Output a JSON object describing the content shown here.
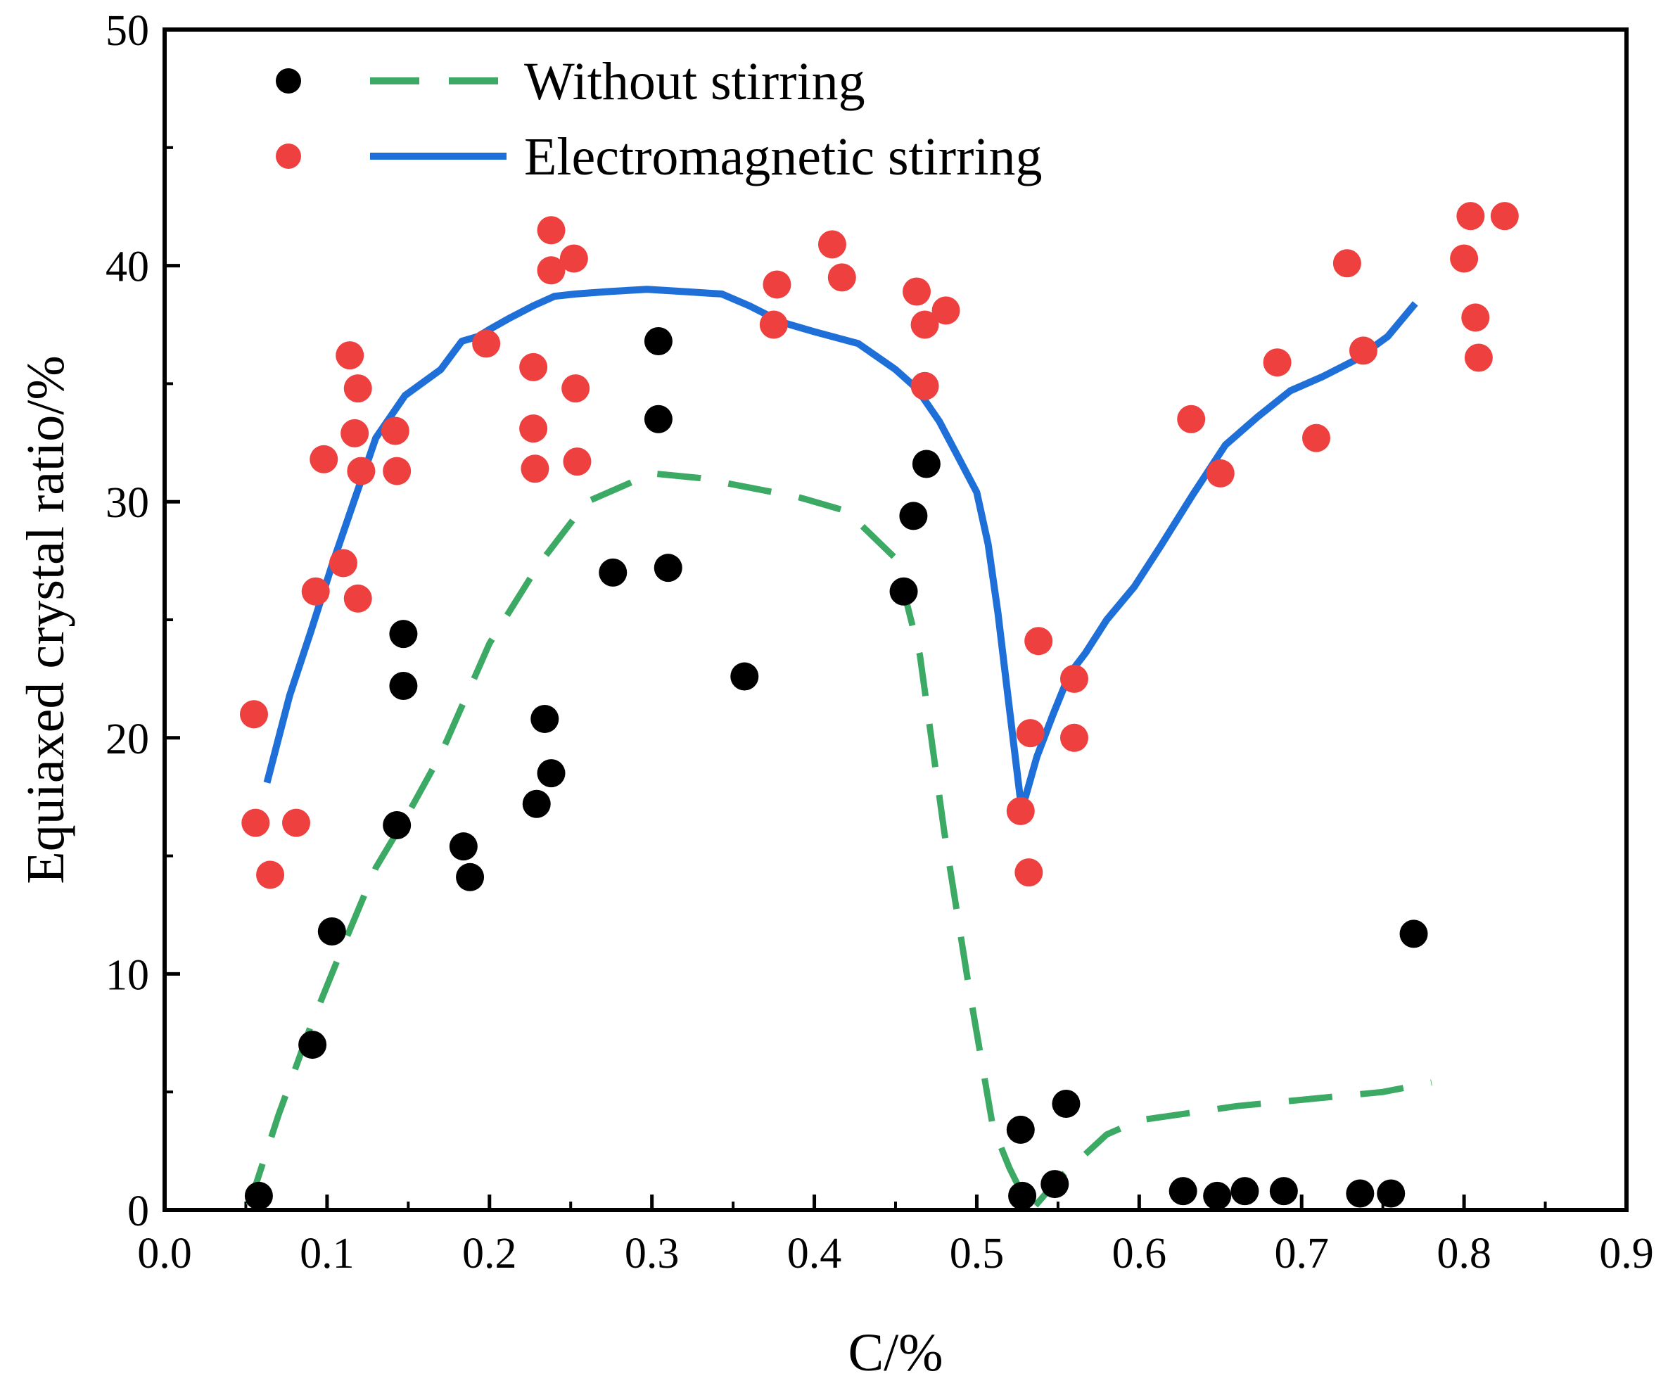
{
  "chart_data": {
    "type": "scatter",
    "title": "",
    "xlabel": "C/%",
    "ylabel": "Equiaxed crystal ratio/%",
    "xlim": [
      0.0,
      0.9
    ],
    "ylim": [
      0,
      50
    ],
    "x_ticks": [
      0.0,
      0.1,
      0.2,
      0.3,
      0.4,
      0.5,
      0.6,
      0.7,
      0.8,
      0.9
    ],
    "x_tick_labels": [
      "0.0",
      "0.1",
      "0.2",
      "0.3",
      "0.4",
      "0.5",
      "0.6",
      "0.7",
      "0.8",
      "0.9"
    ],
    "y_ticks": [
      0,
      10,
      20,
      30,
      40,
      50
    ],
    "y_tick_labels": [
      "0",
      "10",
      "20",
      "30",
      "40",
      "50"
    ],
    "grid": false,
    "legend_position": "top-left",
    "colors": {
      "without_points": "#000000",
      "without_line": "#3caa64",
      "with_points": "#ef4040",
      "with_line": "#1f6fd8",
      "axis": "#000000",
      "background": "#ffffff"
    },
    "series": [
      {
        "name": "Without stirring",
        "kind": "points",
        "marker": "circle",
        "color": "#000000",
        "x": [
          0.058,
          0.091,
          0.103,
          0.143,
          0.147,
          0.147,
          0.184,
          0.188,
          0.229,
          0.234,
          0.238,
          0.276,
          0.304,
          0.304,
          0.31,
          0.357,
          0.455,
          0.461,
          0.469,
          0.527,
          0.528,
          0.548,
          0.555,
          0.627,
          0.648,
          0.665,
          0.689,
          0.736,
          0.755,
          0.769
        ],
        "y": [
          0.6,
          7.0,
          11.8,
          16.3,
          24.4,
          22.2,
          15.4,
          14.1,
          17.2,
          20.8,
          18.5,
          27.0,
          36.8,
          33.5,
          27.2,
          22.6,
          26.2,
          29.4,
          31.6,
          3.4,
          0.6,
          1.1,
          4.5,
          0.8,
          0.6,
          0.8,
          0.8,
          0.7,
          0.7,
          11.7
        ]
      },
      {
        "name": "Without stirring",
        "kind": "line",
        "style": "dashed",
        "color": "#3caa64",
        "x": [
          0.052,
          0.07,
          0.09,
          0.11,
          0.13,
          0.15,
          0.17,
          0.2,
          0.23,
          0.26,
          0.3,
          0.33,
          0.36,
          0.39,
          0.42,
          0.45,
          0.465,
          0.48,
          0.495,
          0.51,
          0.52,
          0.53,
          0.535,
          0.55,
          0.58,
          0.6,
          0.63,
          0.66,
          0.69,
          0.72,
          0.75,
          0.78
        ],
        "y": [
          0.2,
          4.0,
          7.8,
          11.2,
          14.5,
          16.8,
          19.3,
          24.0,
          27.3,
          30.0,
          31.2,
          31.0,
          30.6,
          30.2,
          29.6,
          27.6,
          23.5,
          16.0,
          9.5,
          3.5,
          1.8,
          0.4,
          0.1,
          1.3,
          3.2,
          3.8,
          4.1,
          4.4,
          4.6,
          4.8,
          5.0,
          5.4
        ]
      },
      {
        "name": "Electromagnetic stirring",
        "kind": "points",
        "marker": "circle",
        "color": "#ef4040",
        "x": [
          0.055,
          0.056,
          0.065,
          0.081,
          0.093,
          0.098,
          0.11,
          0.114,
          0.117,
          0.119,
          0.119,
          0.121,
          0.142,
          0.143,
          0.198,
          0.227,
          0.227,
          0.228,
          0.238,
          0.238,
          0.252,
          0.253,
          0.254,
          0.375,
          0.377,
          0.411,
          0.417,
          0.463,
          0.468,
          0.468,
          0.481,
          0.527,
          0.532,
          0.533,
          0.538,
          0.56,
          0.56,
          0.632,
          0.65,
          0.685,
          0.709,
          0.728,
          0.738,
          0.8,
          0.804,
          0.807,
          0.809,
          0.825
        ],
        "y": [
          21.0,
          16.4,
          14.2,
          16.4,
          26.2,
          31.8,
          27.4,
          36.2,
          32.9,
          34.8,
          25.9,
          31.3,
          33.0,
          31.3,
          36.7,
          35.7,
          33.1,
          31.4,
          41.5,
          39.8,
          40.3,
          34.8,
          31.7,
          37.5,
          39.2,
          40.9,
          39.5,
          38.9,
          37.5,
          34.9,
          38.1,
          16.9,
          14.3,
          20.2,
          24.1,
          22.5,
          20.0,
          33.5,
          31.2,
          35.9,
          32.7,
          40.1,
          36.4,
          40.3,
          42.1,
          37.8,
          36.1,
          42.1
        ]
      },
      {
        "name": "Electromagnetic stirring",
        "kind": "line",
        "style": "solid",
        "color": "#1f6fd8",
        "x": [
          0.063,
          0.077,
          0.09,
          0.103,
          0.117,
          0.13,
          0.148,
          0.17,
          0.183,
          0.193,
          0.2,
          0.213,
          0.227,
          0.24,
          0.253,
          0.273,
          0.297,
          0.32,
          0.343,
          0.36,
          0.38,
          0.4,
          0.427,
          0.45,
          0.463,
          0.477,
          0.487,
          0.5,
          0.507,
          0.513,
          0.52,
          0.527,
          0.53,
          0.537,
          0.547,
          0.557,
          0.567,
          0.58,
          0.597,
          0.613,
          0.633,
          0.653,
          0.673,
          0.693,
          0.713,
          0.733,
          0.753,
          0.77
        ],
        "y": [
          18.1,
          21.8,
          24.5,
          27.3,
          30.1,
          32.7,
          34.5,
          35.6,
          36.8,
          37.0,
          37.3,
          37.8,
          38.3,
          38.7,
          38.8,
          38.9,
          39.0,
          38.9,
          38.8,
          38.3,
          37.6,
          37.2,
          36.7,
          35.6,
          34.8,
          33.4,
          32.1,
          30.4,
          28.2,
          25.3,
          21.3,
          17.3,
          17.5,
          19.2,
          21.0,
          22.7,
          23.6,
          25.0,
          26.4,
          28.1,
          30.3,
          32.4,
          33.6,
          34.7,
          35.3,
          36.0,
          37.0,
          38.4
        ]
      }
    ],
    "legend": {
      "entries": [
        {
          "label": "Without stirring",
          "marker_color": "#000000",
          "line_color": "#3caa64",
          "line_style": "dashed"
        },
        {
          "label": "Electromagnetic stirring",
          "marker_color": "#ef4040",
          "line_color": "#1f6fd8",
          "line_style": "solid"
        }
      ]
    }
  }
}
